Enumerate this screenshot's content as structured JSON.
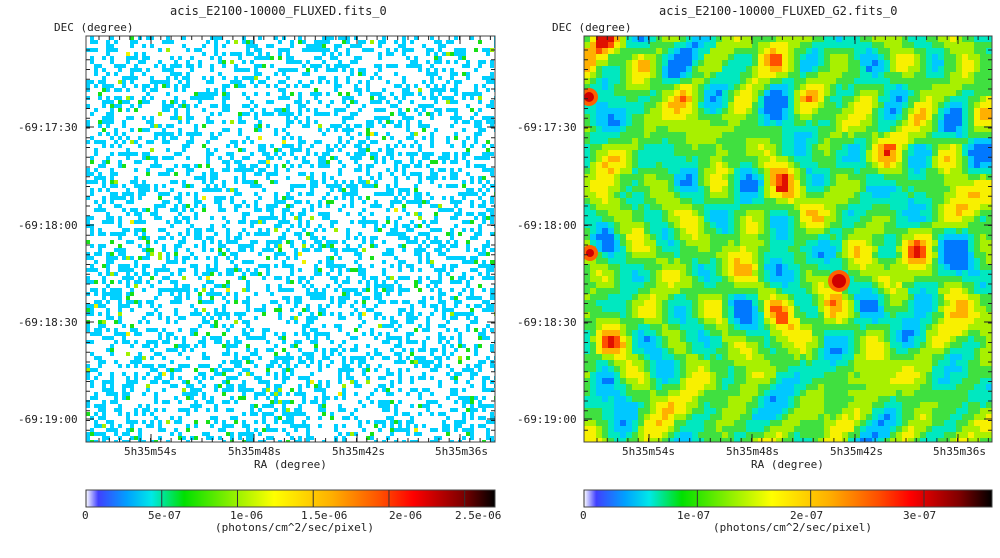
{
  "chart_data": [
    {
      "type": "heatmap",
      "title": "acis_E2100-10000_FLUXED.fits_0",
      "xlabel": "RA (degree)",
      "ylabel": "DEC (degree)",
      "x_ticks": [
        "5h35m54s",
        "5h35m48s",
        "5h35m42s",
        "5h35m36s"
      ],
      "y_ticks": [
        "-69:17:30",
        "-69:18:00",
        "-69:18:30",
        "-69:19:00"
      ],
      "colorbar": {
        "label": "(photons/cm^2/sec/pixel)",
        "ticks": [
          "0",
          "5e-07",
          "1e-06",
          "1.5e-06",
          "2e-06",
          "2.5e-06"
        ],
        "tick_values": [
          0,
          5e-07,
          1e-06,
          1.5e-06,
          2e-06,
          2.5e-06
        ],
        "range": [
          0,
          2.7e-06
        ]
      },
      "appearance": "sparse binned photon-count image: white background with scattered cyan pixels, occasional green and yellow pixels"
    },
    {
      "type": "heatmap",
      "title": "acis_E2100-10000_FLUXED_G2.fits_0",
      "xlabel": "RA (degree)",
      "ylabel": "DEC (degree)",
      "x_ticks": [
        "5h35m54s",
        "5h35m48s",
        "5h35m42s",
        "5h35m36s"
      ],
      "y_ticks": [
        "-69:17:30",
        "-69:18:00",
        "-69:18:30",
        "-69:19:00"
      ],
      "colorbar": {
        "label": "(photons/cm^2/sec/pixel)",
        "ticks": [
          "0",
          "1e-07",
          "2e-07",
          "3e-07"
        ],
        "tick_values": [
          0,
          1e-07,
          2e-07,
          3e-07
        ],
        "range": [
          0,
          3.6e-07
        ]
      },
      "appearance": "Gaussian-smoothed image: mottled green/yellow/cyan field with a few red spots"
    }
  ]
}
